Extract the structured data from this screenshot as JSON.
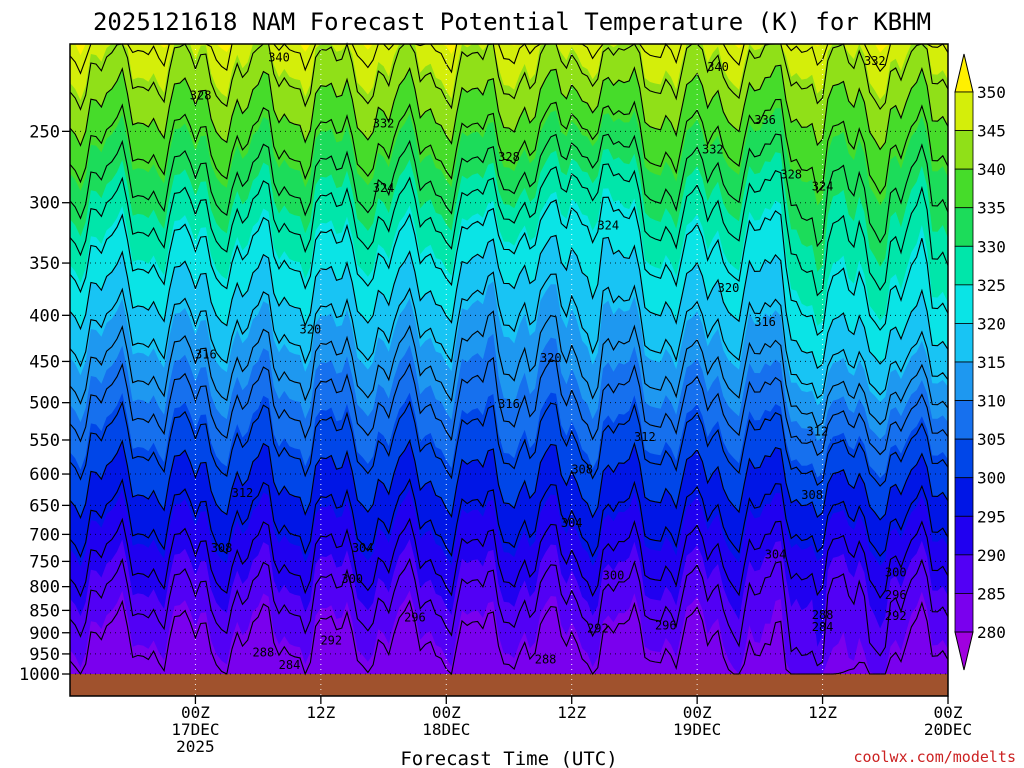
{
  "chart_data": {
    "type": "heatmap",
    "title": "2025121618 NAM Forecast Potential Temperature (K) for KBHM",
    "xlabel": "Forecast Time (UTC)",
    "ylabel": "",
    "y_axis": {
      "scale": "pressure (log, inverted)",
      "range": [
        1000,
        200
      ],
      "ticks": [
        "250",
        "300",
        "350",
        "400",
        "450",
        "500",
        "550",
        "600",
        "650",
        "700",
        "750",
        "800",
        "850",
        "900",
        "950",
        "1000"
      ]
    },
    "x_axis": {
      "range_hours": [
        -6,
        78
      ],
      "ticks": [
        {
          "h": 6,
          "line1": "00Z",
          "line2": "17DEC",
          "line3": "2025"
        },
        {
          "h": 18,
          "line1": "12Z",
          "line2": "",
          "line3": ""
        },
        {
          "h": 30,
          "line1": "00Z",
          "line2": "18DEC",
          "line3": ""
        },
        {
          "h": 42,
          "line1": "12Z",
          "line2": "",
          "line3": ""
        },
        {
          "h": 54,
          "line1": "00Z",
          "line2": "19DEC",
          "line3": ""
        },
        {
          "h": 66,
          "line1": "12Z",
          "line2": "",
          "line3": ""
        },
        {
          "h": 78,
          "line1": "00Z",
          "line2": "20DEC",
          "line3": ""
        }
      ]
    },
    "grid": true,
    "colorbar": {
      "min": 280,
      "max": 350,
      "step": 5,
      "labels": [
        "350",
        "345",
        "340",
        "335",
        "330",
        "325",
        "320",
        "315",
        "310",
        "305",
        "300",
        "295",
        "290",
        "285",
        "280"
      ],
      "colors": [
        "#a000e0",
        "#7a00ee",
        "#5200f5",
        "#2000f0",
        "#0016e6",
        "#0046e8",
        "#1670ee",
        "#1e98f0",
        "#18c4f4",
        "#0ae4e6",
        "#00e6aa",
        "#1cdc5a",
        "#46dc2a",
        "#90e018",
        "#d4ee0a",
        "#fff000"
      ]
    },
    "contour_interval_K": 4,
    "contour_labels": [
      {
        "value": "340",
        "h": 14,
        "p": 207
      },
      {
        "value": "340",
        "h": 56,
        "p": 212
      },
      {
        "value": "332",
        "h": 71,
        "p": 209
      },
      {
        "value": "328",
        "h": 6.5,
        "p": 228
      },
      {
        "value": "332",
        "h": 24,
        "p": 245
      },
      {
        "value": "336",
        "h": 60.5,
        "p": 243
      },
      {
        "value": "328",
        "h": 36,
        "p": 267
      },
      {
        "value": "332",
        "h": 55.5,
        "p": 262
      },
      {
        "value": "328",
        "h": 63,
        "p": 279
      },
      {
        "value": "324",
        "h": 24,
        "p": 289
      },
      {
        "value": "324",
        "h": 66,
        "p": 288
      },
      {
        "value": "324",
        "h": 45.5,
        "p": 318
      },
      {
        "value": "320",
        "h": 57,
        "p": 373
      },
      {
        "value": "320",
        "h": 17,
        "p": 415
      },
      {
        "value": "316",
        "h": 60.5,
        "p": 407
      },
      {
        "value": "316",
        "h": 7,
        "p": 442
      },
      {
        "value": "320",
        "h": 40,
        "p": 446
      },
      {
        "value": "316",
        "h": 36,
        "p": 502
      },
      {
        "value": "312",
        "h": 49,
        "p": 546
      },
      {
        "value": "312",
        "h": 65.5,
        "p": 538
      },
      {
        "value": "308",
        "h": 43,
        "p": 593
      },
      {
        "value": "312",
        "h": 10.5,
        "p": 630
      },
      {
        "value": "308",
        "h": 65,
        "p": 633
      },
      {
        "value": "304",
        "h": 42,
        "p": 680
      },
      {
        "value": "308",
        "h": 8.5,
        "p": 725
      },
      {
        "value": "304",
        "h": 22,
        "p": 725
      },
      {
        "value": "304",
        "h": 61.5,
        "p": 737
      },
      {
        "value": "300",
        "h": 21,
        "p": 785
      },
      {
        "value": "300",
        "h": 46,
        "p": 778
      },
      {
        "value": "300",
        "h": 73,
        "p": 772
      },
      {
        "value": "296",
        "h": 73,
        "p": 817
      },
      {
        "value": "288",
        "h": 66,
        "p": 860
      },
      {
        "value": "292",
        "h": 73,
        "p": 862
      },
      {
        "value": "296",
        "h": 27,
        "p": 866
      },
      {
        "value": "296",
        "h": 51,
        "p": 884
      },
      {
        "value": "284",
        "h": 66,
        "p": 887
      },
      {
        "value": "292",
        "h": 44.5,
        "p": 890
      },
      {
        "value": "292",
        "h": 19,
        "p": 918
      },
      {
        "value": "288",
        "h": 12.5,
        "p": 946
      },
      {
        "value": "288",
        "h": 39.5,
        "p": 964
      },
      {
        "value": "284",
        "h": 15,
        "p": 977
      }
    ]
  },
  "credit": "coolwx.com/modelts"
}
